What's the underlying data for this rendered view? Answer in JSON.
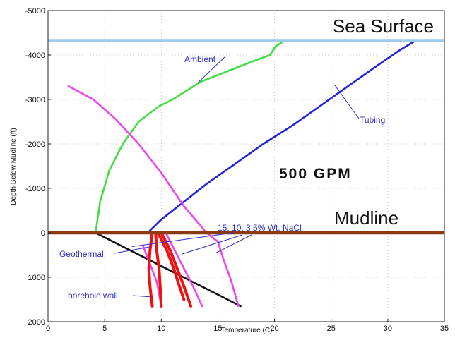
{
  "chart_data": {
    "type": "line",
    "xlabel": "Temperature (C)",
    "ylabel": "Depth Below Mudline (ft)",
    "xlim": [
      0,
      35
    ],
    "ylim": [
      -5000,
      2000
    ],
    "y_inverted": true,
    "grid": true,
    "x_ticks": [
      "0",
      "5",
      "10",
      "15",
      "20",
      "25",
      "30",
      "35"
    ],
    "y_ticks": [
      "-5000",
      "-4000",
      "-3000",
      "-2000",
      "-1000",
      "0",
      "1000",
      "2000"
    ],
    "reference_lines": [
      {
        "label": "Sea Surface",
        "y": -4330,
        "color": "#9cccf0"
      },
      {
        "label": "Mudline",
        "y": 0,
        "color": "#8b3a10"
      }
    ],
    "series": [
      {
        "name": "Ambient",
        "color": "#44dd44",
        "x": [
          4.2,
          4.6,
          5.4,
          6.6,
          8.0,
          9.8,
          11.0,
          13.5,
          16.0,
          18.0,
          19.6,
          20.1,
          20.7
        ],
        "y": [
          0,
          -700,
          -1400,
          -2000,
          -2500,
          -2850,
          -3000,
          -3400,
          -3650,
          -3850,
          -4000,
          -4200,
          -4290
        ]
      },
      {
        "name": "Tubing",
        "color": "#2222dd",
        "x": [
          8.8,
          10.0,
          12.0,
          14.0,
          16.5,
          19.0,
          21.5,
          24.0,
          26.5,
          29.0,
          31.0,
          32.3
        ],
        "y": [
          0,
          -300,
          -700,
          -1100,
          -1550,
          -2000,
          -2400,
          -2850,
          -3300,
          -3750,
          -4100,
          -4300
        ]
      },
      {
        "name": "",
        "color": "#ee44ee",
        "x": [
          1.8,
          4.0,
          6.0,
          8.0,
          10.0,
          12.0,
          14.0,
          15.0
        ],
        "y": [
          -3300,
          -3000,
          -2550,
          -2000,
          -1350,
          -600,
          0,
          200
        ]
      },
      {
        "name": "Geothermal",
        "color": "#111111",
        "x": [
          4.2,
          17.0
        ],
        "y": [
          0,
          1650
        ]
      },
      {
        "name": "15, 10, 3.5% Wt. NaCl",
        "color": "#ee44ee",
        "x": [
          15.0,
          15.5,
          16.2,
          16.8
        ],
        "y": [
          200,
          600,
          1100,
          1650
        ]
      },
      {
        "name": "",
        "color": "#ee44ee",
        "x": [
          10.4,
          11.2,
          12.0,
          12.8,
          13.6
        ],
        "y": [
          0,
          400,
          800,
          1200,
          1650
        ]
      },
      {
        "name": "",
        "color": "#ee44ee",
        "x": [
          8.4,
          9.0,
          9.6,
          10.0
        ],
        "y": [
          300,
          700,
          1100,
          1650
        ]
      },
      {
        "name": "borehole wall",
        "color": "#ee1111",
        "x": [
          9.2,
          9.0,
          8.9,
          9.0,
          9.2
        ],
        "y": [
          0,
          400,
          800,
          1200,
          1650
        ]
      },
      {
        "name": "",
        "color": "#ee1111",
        "x": [
          9.5,
          9.6,
          9.8,
          9.9,
          10.0
        ],
        "y": [
          0,
          400,
          800,
          1200,
          1650
        ]
      },
      {
        "name": "",
        "color": "#ee1111",
        "x": [
          10.0,
          10.8,
          11.4,
          12.0,
          12.6
        ],
        "y": [
          0,
          400,
          800,
          1200,
          1650
        ]
      },
      {
        "name": "",
        "color": "#ee1111",
        "x": [
          9.7,
          10.5,
          11.1,
          11.6,
          12.0
        ],
        "y": [
          0,
          400,
          800,
          1200,
          1500
        ]
      }
    ],
    "annotations": [
      {
        "text": "Ambient"
      },
      {
        "text": "Tubing"
      },
      {
        "text": "Geothermal"
      },
      {
        "text": "15, 10, 3.5% Wt. NaCl"
      },
      {
        "text": "borehole wall"
      },
      {
        "text": "500 GPM"
      }
    ]
  }
}
